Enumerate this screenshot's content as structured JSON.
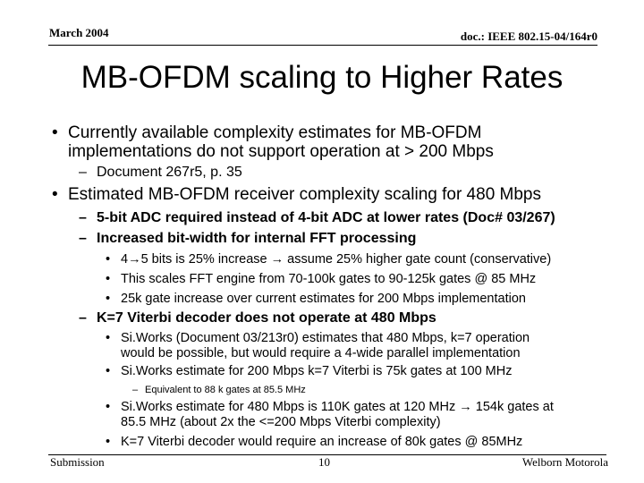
{
  "header": {
    "date": "March 2004",
    "doc": "doc.: IEEE 802.15-04/164r0"
  },
  "title": "MB-OFDM scaling to Higher Rates",
  "markers": {
    "l1": "•",
    "l2": "–",
    "l3": "•",
    "l4": "–"
  },
  "body": {
    "b1": {
      "line1": "Currently available complexity estimates for MB-OFDM",
      "line2": "implementations do not support operation at > 200 Mbps",
      "sub1": "Document 267r5, p. 35"
    },
    "b2": {
      "text": "Estimated MB-OFDM receiver complexity scaling for 480 Mbps",
      "sub1": "5-bit ADC required instead of 4-bit ADC at lower rates (Doc# 03/267)",
      "sub2": "Increased bit-width for internal FFT processing",
      "sub2_items": [
        {
          "a": "4",
          "arrow": "→",
          "b": "5 bits is 25% increase ",
          "arrow2": "→",
          "c": " assume 25% higher gate count (conservative)"
        },
        {
          "text": "This scales FFT engine from 70-100k gates to 90-125k gates @ 85 MHz"
        },
        {
          "text": "25k gate increase over current estimates for 200 Mbps implementation"
        }
      ],
      "sub3": "K=7 Viterbi decoder does not operate at 480 Mbps",
      "sub3_items": [
        {
          "line1": "Si.Works (Document 03/213r0) estimates that 480 Mbps, k=7 operation",
          "line2": "would be possible, but would require a 4-wide parallel implementation"
        },
        {
          "text": "Si.Works estimate for 200 Mbps k=7 Viterbi is 75k gates at 100 MHz"
        },
        {
          "sub": "Equivalent to 88 k gates at 85.5 MHz"
        },
        {
          "line1a": "Si.Works estimate for 480 Mbps is 110K gates at 120 MHz ",
          "arrow": "→",
          "line1b": " 154k gates at",
          "line2": "85.5 MHz (about 2x the <=200 Mbps Viterbi complexity)"
        },
        {
          "text": "K=7 Viterbi decoder would require an increase of 80k gates @  85MHz"
        }
      ]
    }
  },
  "footer": {
    "left": "Submission",
    "page": "10",
    "right": "Welborn Motorola"
  }
}
